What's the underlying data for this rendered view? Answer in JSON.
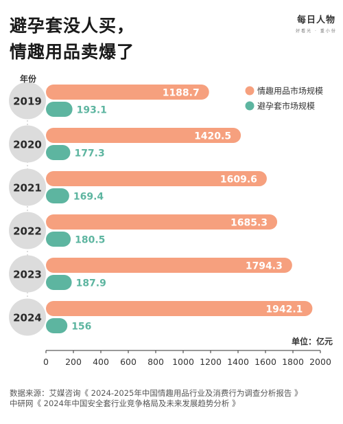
{
  "header": {
    "title_line1": "避孕套没人买，",
    "title_line2": "情趣用品卖爆了",
    "logo_text": "每日人物",
    "logo_sub": "好看光 · 重小份"
  },
  "colors": {
    "market_bar": "#F6A07E",
    "condom_bar": "#5DB5A0",
    "year_disc": "#DCDCDC",
    "label_white": "#ffffff"
  },
  "chart_data": {
    "type": "bar",
    "orientation": "horizontal",
    "year_axis_label": "年份",
    "unit_label": "单位：亿元",
    "categories": [
      "2019",
      "2020",
      "2021",
      "2022",
      "2023",
      "2024"
    ],
    "series": [
      {
        "name": "情趣用品市场规模",
        "values": [
          1188.7,
          1420.5,
          1609.6,
          1685.3,
          1794.3,
          1942.1
        ]
      },
      {
        "name": "避孕套市场规模",
        "values": [
          193.1,
          177.3,
          169.4,
          180.5,
          187.9,
          156
        ]
      }
    ],
    "value_labels": [
      [
        "1188.7",
        "1420.5",
        "1609.6",
        "1685.3",
        "1794.3",
        "1942.1"
      ],
      [
        "193.1",
        "177.3",
        "169.4",
        "180.5",
        "187.9",
        "156"
      ]
    ],
    "xlim": [
      0,
      2000
    ],
    "x_ticks": [
      0,
      200,
      400,
      600,
      800,
      1000,
      1200,
      1400,
      1600,
      1800,
      2000
    ],
    "grid": false,
    "legend_position": "top-right"
  },
  "source": {
    "line1": "数据来源：艾媒咨询《 2024-2025年中国情趣用品行业及消费行为调查分析报告 》",
    "line2": "中研网《 2024年中国安全套行业竞争格局及未来发展趋势分析 》"
  }
}
